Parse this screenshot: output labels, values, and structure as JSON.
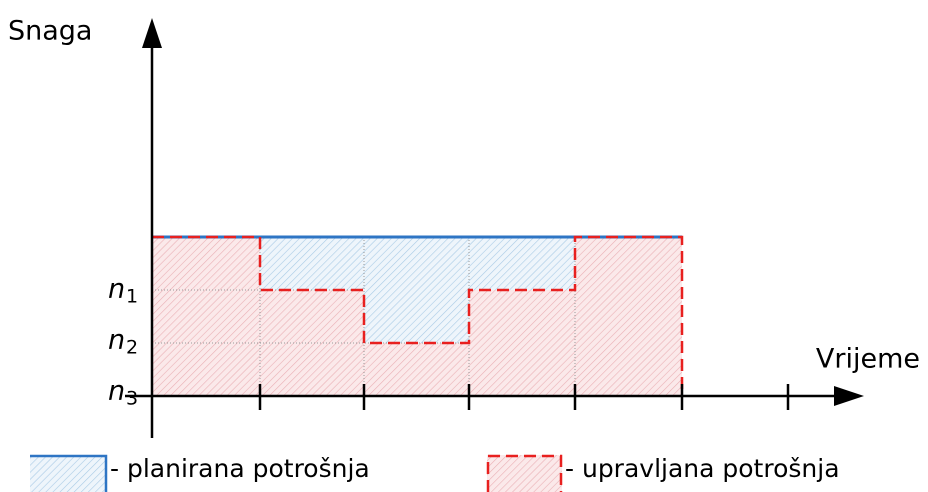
{
  "axes": {
    "y_label": "Snaga",
    "x_label": "Vrijeme"
  },
  "levels": [
    {
      "symbol": "n",
      "subscript": "1"
    },
    {
      "symbol": "n",
      "subscript": "2"
    },
    {
      "symbol": "n",
      "subscript": "3"
    }
  ],
  "legend": [
    {
      "label": "- planirana potrošnja"
    },
    {
      "label": "- upravljana potrošnja"
    }
  ]
}
